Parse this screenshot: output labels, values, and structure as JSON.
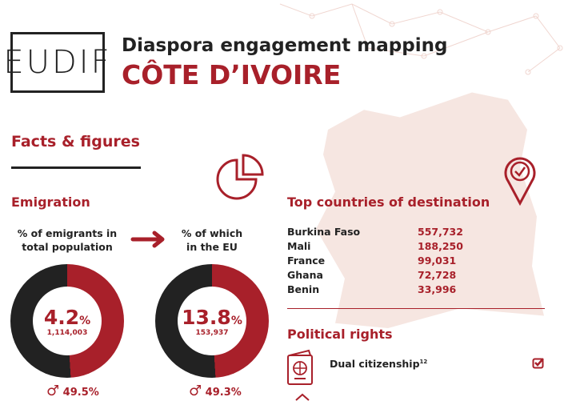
{
  "header": {
    "logo": "EUDIF",
    "title": "Diaspora engagement mapping",
    "country": "CÔTE D’IVOIRE"
  },
  "facts_title": "Facts & figures",
  "emigration": {
    "title": "Emigration",
    "total": {
      "label_1": "% of emigrants in",
      "label_2": "total population",
      "percent": "4.2",
      "unit": "%",
      "count": "1,114,003",
      "male": "49.5%"
    },
    "eu": {
      "label_1": "% of which",
      "label_2": "in the EU",
      "percent": "13.8",
      "unit": "%",
      "count": "153,937",
      "male": "49.3%"
    }
  },
  "destinations": {
    "title": "Top countries of destination",
    "rows": [
      {
        "country": "Burkina Faso",
        "value": "557,732"
      },
      {
        "country": "Mali",
        "value": "188,250"
      },
      {
        "country": "France",
        "value": "99,031"
      },
      {
        "country": "Ghana",
        "value": "72,728"
      },
      {
        "country": "Benin",
        "value": "33,996"
      }
    ]
  },
  "political": {
    "title": "Political rights",
    "items": [
      {
        "label": "Dual citizenship",
        "sup": "12",
        "checked": true
      }
    ]
  },
  "colors": {
    "accent": "#a8202a",
    "dark": "#222222",
    "map": "#f6e6e1"
  }
}
